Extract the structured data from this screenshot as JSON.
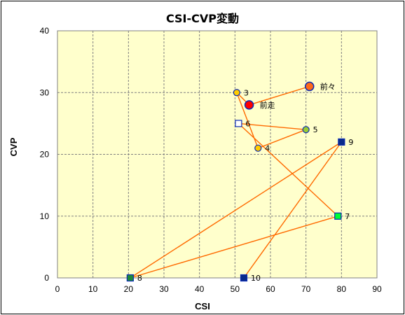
{
  "chart_data": {
    "type": "scatter",
    "title": "CSI-CVP変動",
    "xlabel": "CSI",
    "ylabel": "CVP",
    "xlim": [
      0,
      90
    ],
    "ylim": [
      0,
      40
    ],
    "xticks": [
      0,
      10,
      20,
      30,
      40,
      50,
      60,
      70,
      80,
      90
    ],
    "yticks": [
      0,
      10,
      20,
      30,
      40
    ],
    "grid": true,
    "legend": "none",
    "colors": {
      "plot_bg": "#ffffcc",
      "grid": "#808080",
      "line": "#ff6a00"
    },
    "path_order": [
      "前々",
      "前走",
      "3",
      "4",
      "5",
      "6",
      "7",
      "8",
      "9",
      "10"
    ],
    "points": [
      {
        "label": "前々",
        "x": 71,
        "y": 31,
        "marker": "circle",
        "size": "large",
        "fill": "#ff6a1a",
        "stroke": "#0b2bb3"
      },
      {
        "label": "前走",
        "x": 54,
        "y": 28,
        "marker": "circle",
        "size": "large",
        "fill": "#ff0000",
        "stroke": "#0b2bb3"
      },
      {
        "label": "3",
        "x": 50.5,
        "y": 30,
        "marker": "circle",
        "size": "small",
        "fill": "#ffcc00",
        "stroke": "#0b2bb3"
      },
      {
        "label": "4",
        "x": 56.5,
        "y": 21,
        "marker": "circle",
        "size": "small",
        "fill": "#ffcc00",
        "stroke": "#0b2bb3"
      },
      {
        "label": "5",
        "x": 70,
        "y": 24,
        "marker": "circle",
        "size": "small",
        "fill": "#99cc33",
        "stroke": "#0b2bb3"
      },
      {
        "label": "6",
        "x": 51,
        "y": 25,
        "marker": "square",
        "size": "small",
        "fill": "#ffffff",
        "stroke": "#0b2bb3"
      },
      {
        "label": "7",
        "x": 79,
        "y": 10,
        "marker": "square",
        "size": "small",
        "fill": "#00ff33",
        "stroke": "#0b2bb3"
      },
      {
        "label": "8",
        "x": 20.5,
        "y": 0,
        "marker": "square",
        "size": "small",
        "fill": "#1f8a3a",
        "stroke": "#0b2bb3"
      },
      {
        "label": "9",
        "x": 80,
        "y": 22,
        "marker": "square",
        "size": "small",
        "fill": "#0a2a8a",
        "stroke": "#0b2bb3"
      },
      {
        "label": "10",
        "x": 52.5,
        "y": 0,
        "marker": "square",
        "size": "small",
        "fill": "#0a2a8a",
        "stroke": "#0b2bb3"
      }
    ]
  }
}
